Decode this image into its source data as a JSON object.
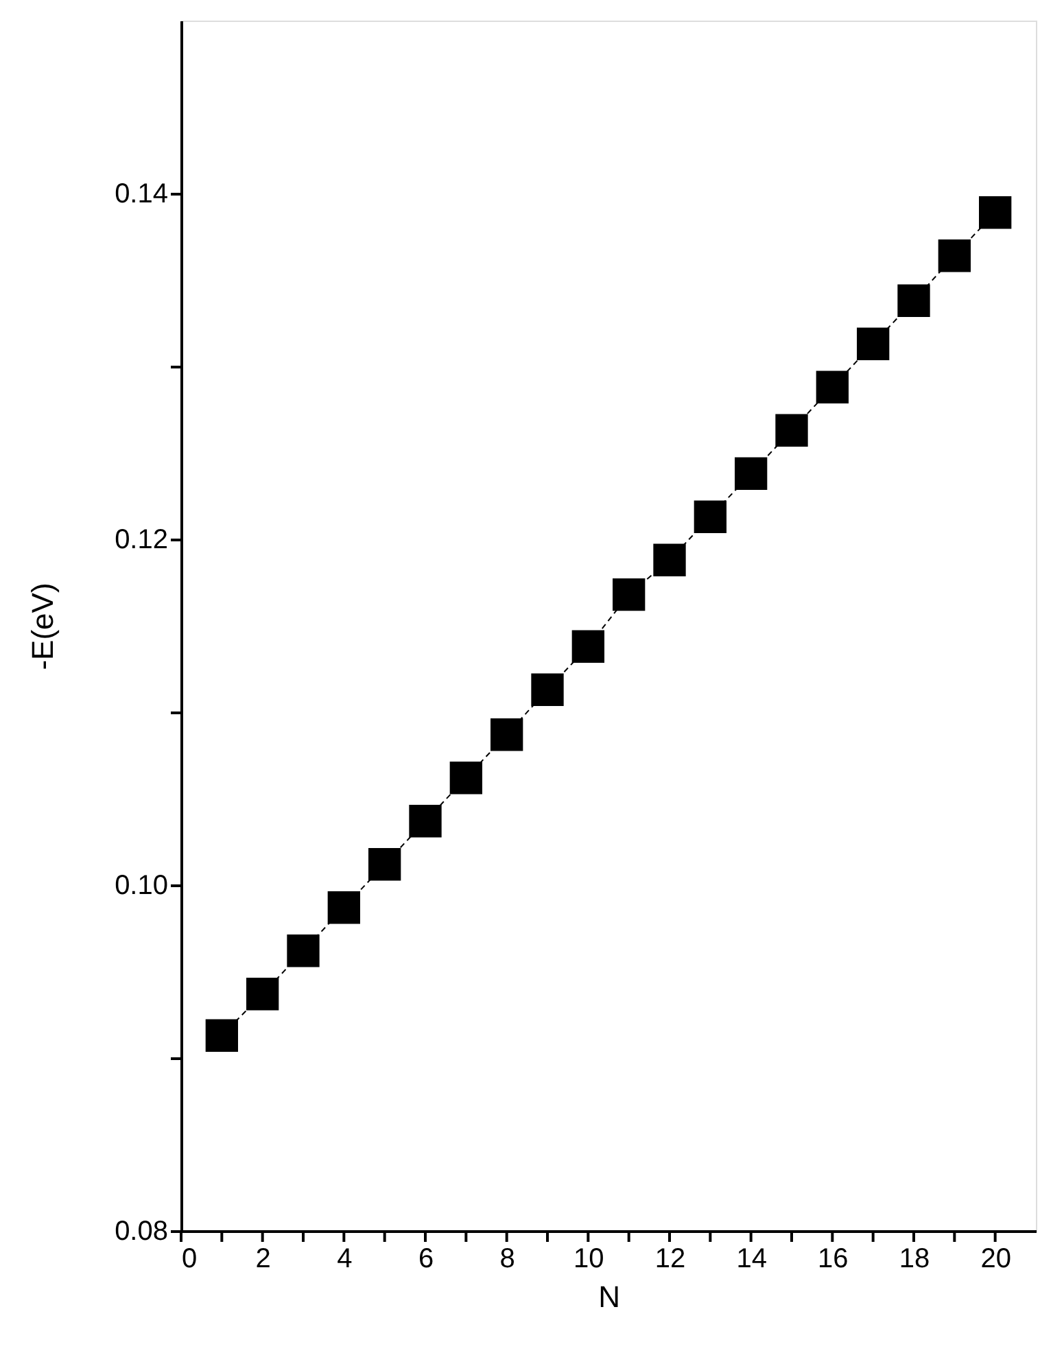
{
  "chart_data": {
    "type": "line",
    "xlabel": "N",
    "ylabel": "-E(eV)",
    "x": [
      1,
      2,
      3,
      4,
      5,
      6,
      7,
      8,
      9,
      10,
      11,
      12,
      13,
      14,
      15,
      16,
      17,
      18,
      19,
      20
    ],
    "series": [
      {
        "color": "#000000",
        "marker": "square",
        "line_style": "dashed",
        "values": [
          0.0913,
          0.0937,
          0.0962,
          0.0987,
          0.1012,
          0.1037,
          0.1062,
          0.1087,
          0.1113,
          0.1138,
          0.1168,
          0.1188,
          0.1213,
          0.1238,
          0.1263,
          0.1288,
          0.1313,
          0.1338,
          0.1364,
          0.1389
        ]
      }
    ],
    "xlim": [
      0,
      21
    ],
    "ylim": [
      0.08,
      0.15
    ],
    "xticks": [
      0,
      {
        "value": 1,
        "label": null
      },
      2,
      {
        "value": 3,
        "label": null
      },
      4,
      {
        "value": 5,
        "label": null
      },
      6,
      {
        "value": 7,
        "label": null
      },
      8,
      {
        "value": 9,
        "label": null
      },
      10,
      {
        "value": 11,
        "label": null
      },
      12,
      {
        "value": 13,
        "label": null
      },
      14,
      {
        "value": 15,
        "label": null
      },
      16,
      {
        "value": 17,
        "label": null
      },
      18,
      {
        "value": 19,
        "label": null
      },
      20
    ],
    "yticks": [
      {
        "value": 0.08,
        "label": "0.08"
      },
      {
        "value": 0.09,
        "label": null
      },
      {
        "value": 0.1,
        "label": "0.10"
      },
      {
        "value": 0.11,
        "label": null
      },
      {
        "value": 0.12,
        "label": "0.12"
      },
      {
        "value": 0.13,
        "label": null
      },
      {
        "value": 0.14,
        "label": "0.14"
      }
    ],
    "grid": false
  }
}
